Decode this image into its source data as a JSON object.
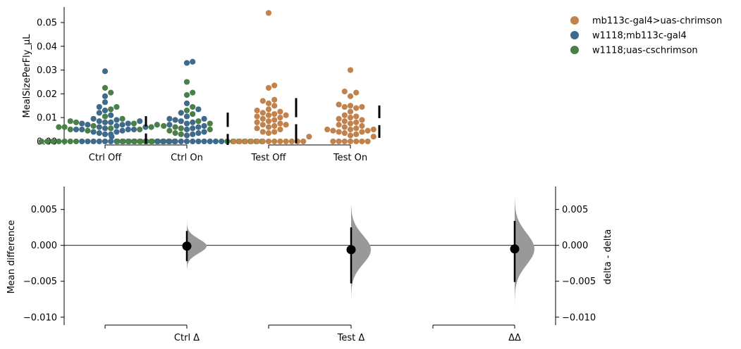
{
  "legend": [
    {
      "label": "mb113c-gal4>uas-chrimson",
      "color": "#c1824b"
    },
    {
      "label": "w1118;mb113c-gal4",
      "color": "#3f6a8a"
    },
    {
      "label": "w1118;uas-cschrimson",
      "color": "#4a7f47"
    }
  ],
  "chart_data": [
    {
      "type": "scatter",
      "subtype": "swarm",
      "ylabel": "MealSizePerFly_µL",
      "ylim": [
        -0.0015,
        0.0565
      ],
      "yticks": [
        "0.00",
        "0.01",
        "0.02",
        "0.03",
        "0.04",
        "0.05"
      ],
      "ytick_values": [
        0,
        0.01,
        0.02,
        0.03,
        0.04,
        0.05
      ],
      "categories": [
        "Ctrl Off",
        "Ctrl On",
        "Test Off",
        "Test On"
      ],
      "series": [
        {
          "name": "w1118;mb113c-gal4",
          "color": "#3f6a8a",
          "groups": [
            [
              0,
              0,
              0,
              0,
              0,
              0,
              0,
              0,
              0,
              0,
              0.003,
              0.003,
              0.0035,
              0.004,
              0.004,
              0.0045,
              0.005,
              0.005,
              0.005,
              0.005,
              0.0055,
              0.006,
              0.006,
              0.0065,
              0.007,
              0.007,
              0.0075,
              0.0075,
              0.008,
              0.008,
              0.0085,
              0.0085,
              0.009,
              0.0095,
              0.011,
              0.012,
              0.013,
              0.0145,
              0.0165,
              0.019,
              0.0295
            ],
            [
              0,
              0,
              0,
              0,
              0,
              0,
              0,
              0,
              0,
              0,
              0,
              0,
              0.002,
              0.0025,
              0.003,
              0.0035,
              0.004,
              0.005,
              0.0055,
              0.006,
              0.0065,
              0.007,
              0.0075,
              0.008,
              0.0085,
              0.009,
              0.0095,
              0.0095,
              0.0105,
              0.012,
              0.0135,
              0.016,
              0.033,
              0.0335
            ]
          ]
        },
        {
          "name": "w1118;uas-cschrimson",
          "color": "#4a7f47",
          "groups": [
            [
              0,
              0,
              0,
              0,
              0,
              0,
              0,
              0,
              0,
              0,
              0,
              0,
              0,
              0,
              0.0045,
              0.005,
              0.005,
              0.0055,
              0.006,
              0.006,
              0.006,
              0.0065,
              0.007,
              0.0075,
              0.008,
              0.0085,
              0.0095,
              0.0105,
              0.0135,
              0.0145,
              0.0205,
              0.0225
            ],
            [
              0,
              0,
              0,
              0,
              0,
              0,
              0,
              0,
              0,
              0,
              0,
              0,
              0,
              0,
              0.003,
              0.0035,
              0.0045,
              0.005,
              0.0055,
              0.006,
              0.0065,
              0.0075,
              0.0085,
              0.0115,
              0.013,
              0.0145,
              0.0195,
              0.0205,
              0.025
            ]
          ]
        },
        {
          "name": "mb113c-gal4>uas-chrimson",
          "color": "#c1824b",
          "groups": [
            [
              0,
              0,
              0,
              0,
              0,
              0,
              0,
              0,
              0,
              0,
              0,
              0,
              0,
              0.002,
              0.0035,
              0.004,
              0.004,
              0.005,
              0.0055,
              0.006,
              0.0065,
              0.007,
              0.007,
              0.0075,
              0.008,
              0.0085,
              0.009,
              0.0095,
              0.01,
              0.0105,
              0.011,
              0.011,
              0.0115,
              0.012,
              0.0125,
              0.013,
              0.0135,
              0.015,
              0.016,
              0.017,
              0.0175,
              0.0225,
              0.0235,
              0.054
            ],
            [
              0,
              0,
              0,
              0,
              0,
              0,
              0,
              0.002,
              0.0025,
              0.003,
              0.0035,
              0.004,
              0.004,
              0.0045,
              0.0045,
              0.005,
              0.005,
              0.005,
              0.0055,
              0.006,
              0.0065,
              0.007,
              0.0075,
              0.008,
              0.0085,
              0.009,
              0.0095,
              0.01,
              0.0105,
              0.011,
              0.0125,
              0.014,
              0.0145,
              0.0145,
              0.015,
              0.0155,
              0.019,
              0.0205,
              0.021,
              0.03
            ]
          ]
        }
      ],
      "summary_bars": [
        {
          "category": "Ctrl Off",
          "mean": 0.0048,
          "sd": 0.0058
        },
        {
          "category": "Ctrl On",
          "mean": 0.0046,
          "sd": 0.0075
        },
        {
          "category": "Test Off",
          "mean": 0.0087,
          "sd": 0.0095
        },
        {
          "category": "Test On",
          "mean": 0.0083,
          "sd": 0.0068
        }
      ],
      "group_brackets": [
        [
          "Ctrl Off",
          "Ctrl On"
        ],
        [
          "Test Off",
          "Test On"
        ]
      ]
    },
    {
      "type": "scatter",
      "subtype": "estimation",
      "ylabel": "Mean difference",
      "ylabel_right": "delta - delta",
      "ylim": [
        -0.0111,
        0.0082
      ],
      "yticks": [
        "−0.010",
        "−0.005",
        "0.000",
        "0.005"
      ],
      "ytick_values": [
        -0.01,
        -0.005,
        0,
        0.005
      ],
      "yticks_right": [
        "−0.010",
        "−0.005",
        "0.000",
        "0.005"
      ],
      "categories": [
        "Ctrl Δ",
        "Test Δ",
        "ΔΔ"
      ],
      "means": [
        -0.0001,
        -0.0006,
        -0.0005
      ],
      "ci": [
        [
          -0.0022,
          0.002
        ],
        [
          -0.0053,
          0.0025
        ],
        [
          -0.0051,
          0.0034
        ]
      ],
      "dist_range": [
        [
          -0.0035,
          0.0035
        ],
        [
          -0.0092,
          0.0055
        ],
        [
          -0.01,
          0.007
        ]
      ],
      "dist_sd": [
        0.001,
        0.002,
        0.0022
      ],
      "dist_color": "#999999"
    }
  ]
}
